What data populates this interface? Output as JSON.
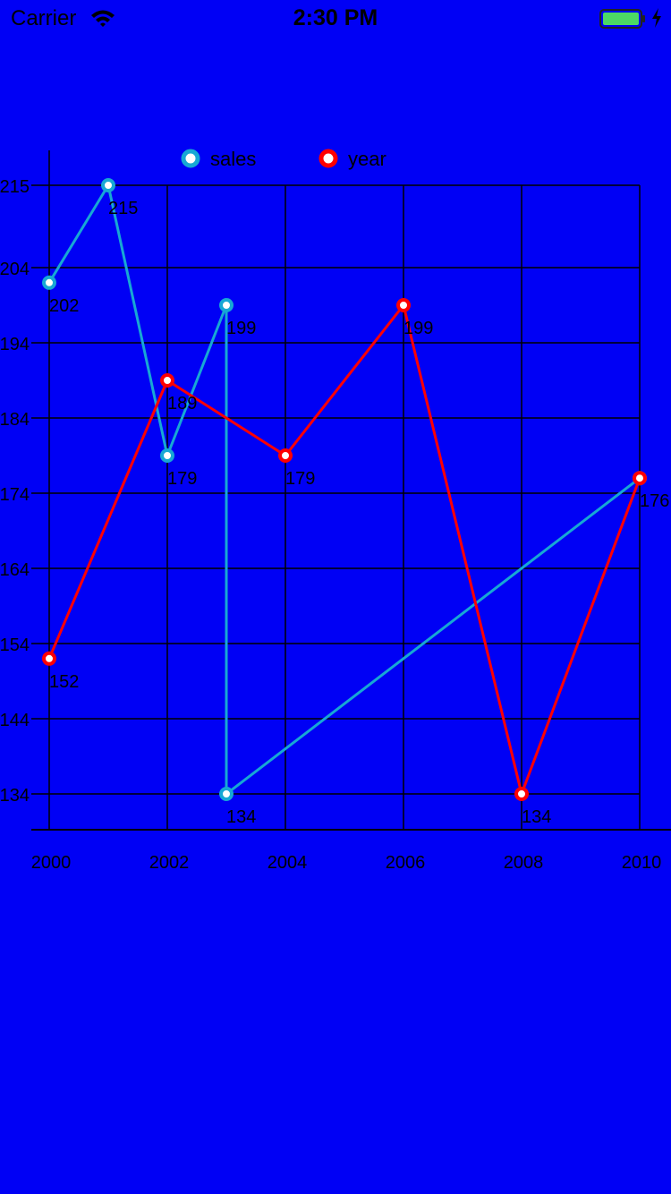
{
  "status_bar": {
    "carrier": "Carrier",
    "time": "2:30 PM",
    "wifi_icon": "wifi-icon",
    "battery_icon": "battery-icon",
    "charging_icon": "bolt-icon",
    "battery_color": "#4cd964"
  },
  "colors": {
    "background": "#0000f5",
    "grid": "#000000",
    "text": "#000000"
  },
  "chart_data": {
    "type": "line",
    "x_ticks": [
      "2000",
      "2002",
      "2004",
      "2006",
      "2008",
      "2010"
    ],
    "y_ticks": [
      "134",
      "144",
      "154",
      "164",
      "174",
      "184",
      "194",
      "204",
      "215"
    ],
    "xlim": [
      2000,
      2010
    ],
    "ylim": [
      134,
      215
    ],
    "grid": true,
    "legend_position": "top",
    "series": [
      {
        "name": "sales",
        "color": "#17a8d4",
        "points": [
          {
            "x": 2000,
            "y": 202
          },
          {
            "x": 2001,
            "y": 215
          },
          {
            "x": 2002,
            "y": 179
          },
          {
            "x": 2003,
            "y": 199
          },
          {
            "x": 2003,
            "y": 134
          },
          {
            "x": 2010,
            "y": 176
          }
        ],
        "labels": [
          "202",
          "215",
          "179",
          "199",
          "134",
          ""
        ]
      },
      {
        "name": "year",
        "color": "#ff0000",
        "points": [
          {
            "x": 2000,
            "y": 152
          },
          {
            "x": 2002,
            "y": 189
          },
          {
            "x": 2004,
            "y": 179
          },
          {
            "x": 2006,
            "y": 199
          },
          {
            "x": 2008,
            "y": 134
          },
          {
            "x": 2010,
            "y": 176
          }
        ],
        "labels": [
          "152",
          "189",
          "179",
          "199",
          "134",
          "176"
        ]
      }
    ]
  }
}
